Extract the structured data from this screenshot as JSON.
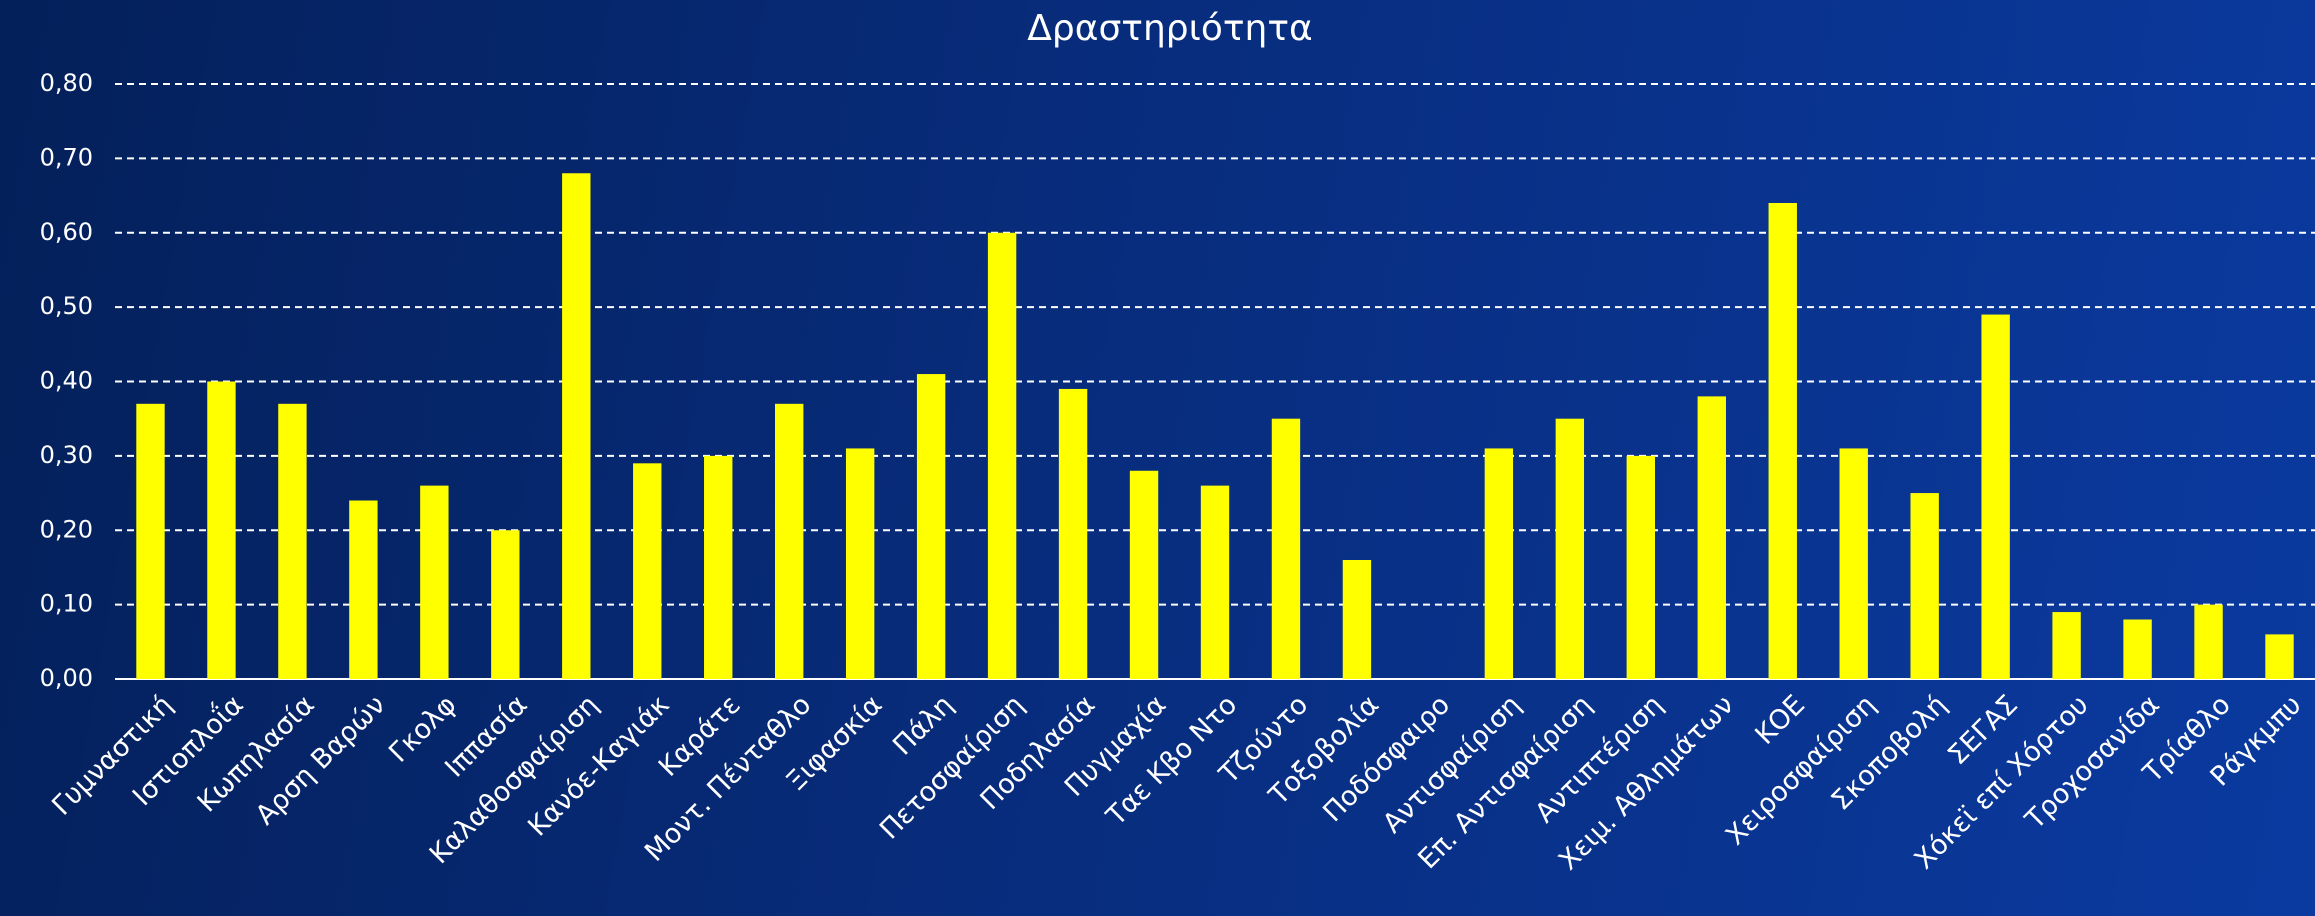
{
  "chart_data": {
    "type": "bar",
    "title": "Δραστηριότητα",
    "categories": [
      "Γυμναστική",
      "Ιστιοπλοΐα",
      "Κωπηλασία",
      "Αρση Βαρών",
      "Γκολφ",
      "Ιππασία",
      "Καλαθοσφαίριση",
      "Κανόε-Καγιάκ",
      "Καράτε",
      "Μοντ. Πένταθλο",
      "Ξιφασκία",
      "Πάλη",
      "Πετοσφαίριση",
      "Ποδηλασία",
      "Πυγμαχία",
      "Ταε Κβο Ντο",
      "Τζούντο",
      "Τοξοβολία",
      "Ποδόσφαιρο",
      "Αντισφαίριση",
      "Επ. Αντισφαίριση",
      "Αντιπτέριση",
      "Χειμ. Αθλημάτων",
      "ΚΟΕ",
      "Χειροσφαίριση",
      "Σκοποβολή",
      "ΣΕΓΑΣ",
      "Χόκεϊ επί Χόρτου",
      "Τροχοσανίδα",
      "Τρίαθλο",
      "Ράγκμπυ"
    ],
    "values": [
      0.37,
      0.4,
      0.37,
      0.24,
      0.26,
      0.2,
      0.68,
      0.29,
      0.3,
      0.37,
      0.31,
      0.41,
      0.6,
      0.39,
      0.28,
      0.26,
      0.35,
      0.16,
      0,
      0.31,
      0.35,
      0.3,
      0.38,
      0.64,
      0.31,
      0.25,
      0.49,
      0.09,
      0.08,
      0.1,
      0.06
    ],
    "color": "#ffff00",
    "ylim": [
      0,
      0.8
    ],
    "yticks": [
      {
        "value": 0,
        "label": "0,00"
      },
      {
        "value": 0.1,
        "label": "0,10"
      },
      {
        "value": 0.2,
        "label": "0,20"
      },
      {
        "value": 0.3,
        "label": "0,30"
      },
      {
        "value": 0.4,
        "label": "0,40"
      },
      {
        "value": 0.5,
        "label": "0,50"
      },
      {
        "value": 0.6,
        "label": "0,60"
      },
      {
        "value": 0.7,
        "label": "0,70"
      },
      {
        "value": 0.8,
        "label": "0,80"
      }
    ],
    "grid": true
  }
}
